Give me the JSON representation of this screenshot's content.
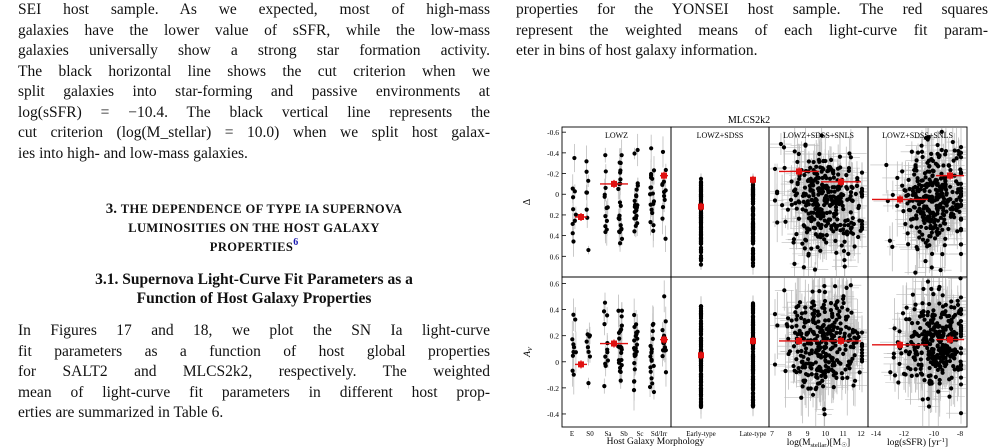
{
  "left": {
    "para1_lines": [
      "SEI host sample.   As we expected, most of high-mass",
      "galaxies have the lower value of sSFR, while the low-mass",
      "galaxies universally show a strong star formation activity.",
      "The black horizontal line shows the cut criterion when we",
      "split galaxies into star-forming and passive environments at",
      "log(sSFR) = −10.4. The black vertical line represents the",
      "cut criterion (log(M_stellar) = 10.0) when we split host galax-",
      "ies into high- and low-mass galaxies."
    ],
    "section_number": "3.",
    "section_title_line1": "The Dependence of Type Ia Supernova",
    "section_title_line2": "Luminosities on the Host Galaxy",
    "section_title_line3": "Properties",
    "footnote_mark": "6",
    "subsection_line1": "3.1.  Supernova Light-Curve Fit Parameters as a",
    "subsection_line2": "Function of Host Galaxy Properties",
    "para2_lines": [
      "In Figures 17 and 18, we plot the SN Ia light-curve",
      "fit parameters as a function of host global properties",
      "for SALT2 and MLCS2k2, respectively. The weighted",
      "mean of light-curve fit parameters in different host prop-",
      "erties are summarized in Table 6."
    ],
    "fig_ref_1": "17",
    "fig_ref_2": "18",
    "table_ref": "6"
  },
  "right": {
    "para_lines": [
      "properties for the YONSEI host sample. The red squares",
      "represent the weighted means of each light-curve fit param-",
      "eter in bins of host galaxy information."
    ]
  },
  "figure": {
    "title": "MLCS2k2",
    "panel_titles": [
      "LOWZ",
      "LOWZ+SDSS",
      "LOWZ+SDSS+SNLS",
      "LOWZ+SDSS+SNLS"
    ],
    "row_labels": [
      "Δ",
      "A_V"
    ],
    "top_ticks": [
      "-0.6",
      "-0.4",
      "-0.2",
      "0",
      "0.2",
      "0.4",
      "0.6"
    ],
    "bottom_ticks": [
      "0.6",
      "0.4",
      "0.2",
      "0",
      "-0.2",
      "-0.4"
    ],
    "morph_ticks": [
      "E",
      "S0",
      "Sa",
      "Sb",
      "Sc",
      "Sd/Irr"
    ],
    "type_ticks": [
      "Early-type",
      "Late-type"
    ],
    "mass_ticks": [
      "7",
      "8",
      "9",
      "10",
      "11",
      "12"
    ],
    "ssfr_ticks": [
      "-14",
      "-12",
      "-10",
      "-8"
    ],
    "xlabel_morph": "Host Galaxy Morphology",
    "xlabel_mass": "log(M",
    "xlabel_mass_sub": "stellar",
    "xlabel_mass_end": ")[M",
    "xlabel_mass_sun": "☉",
    "xlabel_mass_close": "]",
    "xlabel_ssfr": "log(sSFR) [yr",
    "xlabel_ssfr_sup": "-1",
    "xlabel_ssfr_close": "]"
  },
  "colors": {
    "link": "#1a1ab0",
    "mean_marker": "#e01010",
    "errorbar": "#bdbdbd"
  }
}
